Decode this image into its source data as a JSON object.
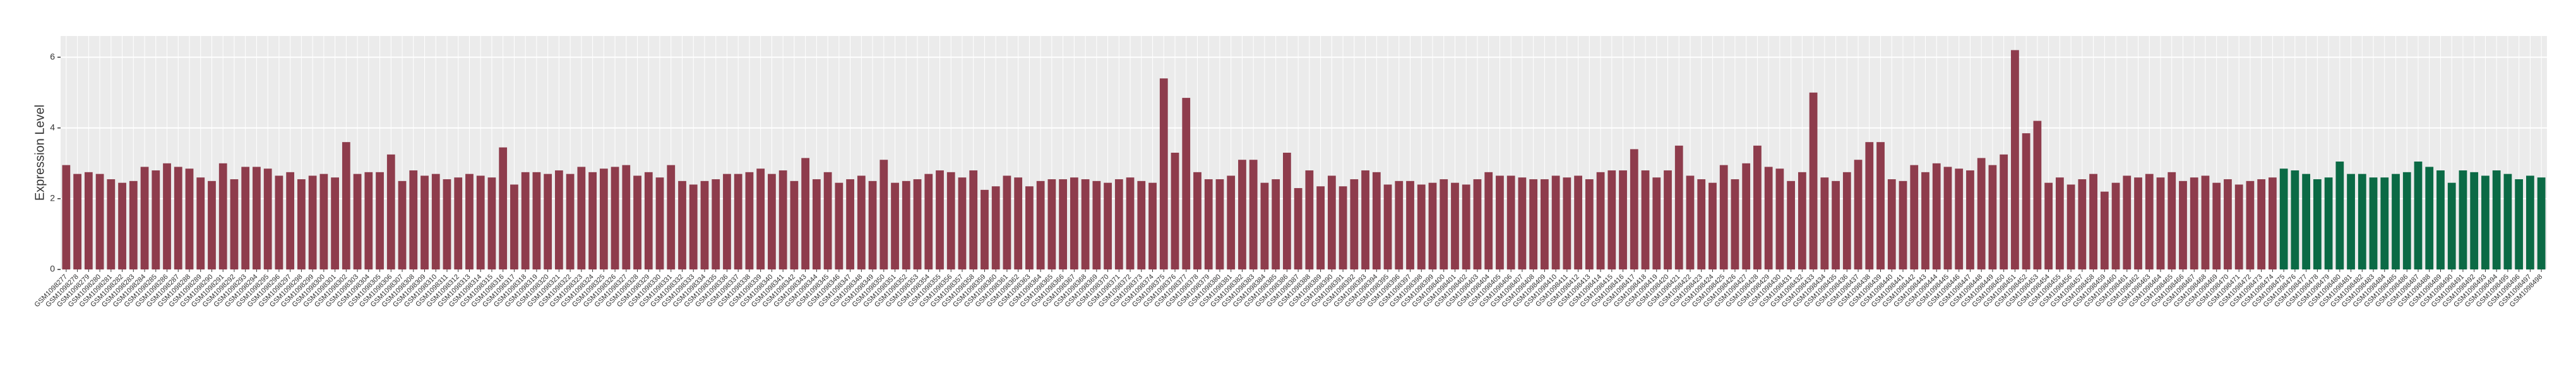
{
  "chart_data": {
    "type": "bar",
    "y_label": "Expression Level",
    "categories": [
      "GSM1098277",
      "GSM1098278",
      "GSM1098279",
      "GSM1098280",
      "GSM1098281",
      "GSM1098282",
      "GSM1098283",
      "GSM1098284",
      "GSM1098285",
      "GSM1098286",
      "GSM1098287",
      "GSM1098288",
      "GSM1098289",
      "GSM1098290",
      "GSM1098291",
      "GSM1098292",
      "GSM1098293",
      "GSM1098294",
      "GSM1098295",
      "GSM1098296",
      "GSM1098297",
      "GSM1098298",
      "GSM1098299",
      "GSM1098300",
      "GSM1098301",
      "GSM1098302",
      "GSM1098303",
      "GSM1098304",
      "GSM1098305",
      "GSM1098306",
      "GSM1098307",
      "GSM1098308",
      "GSM1098309",
      "GSM1098310",
      "GSM1098311",
      "GSM1098312",
      "GSM1098313",
      "GSM1098314",
      "GSM1098315",
      "GSM1098316",
      "GSM1098317",
      "GSM1098318",
      "GSM1098319",
      "GSM1098320",
      "GSM1098321",
      "GSM1098322",
      "GSM1098323",
      "GSM1098324",
      "GSM1098325",
      "GSM1098326",
      "GSM1098327",
      "GSM1098328",
      "GSM1098329",
      "GSM1098330",
      "GSM1098331",
      "GSM1098332",
      "GSM1098333",
      "GSM1098334",
      "GSM1098335",
      "GSM1098336",
      "GSM1098337",
      "GSM1098338",
      "GSM1098339",
      "GSM1098340",
      "GSM1098341",
      "GSM1098342",
      "GSM1098343",
      "GSM1098344",
      "GSM1098345",
      "GSM1098346",
      "GSM1098347",
      "GSM1098348",
      "GSM1098349",
      "GSM1098350",
      "GSM1098351",
      "GSM1098352",
      "GSM1098353",
      "GSM1098354",
      "GSM1098355",
      "GSM1098356",
      "GSM1098357",
      "GSM1098358",
      "GSM1098359",
      "GSM1098360",
      "GSM1098361",
      "GSM1098362",
      "GSM1098363",
      "GSM1098364",
      "GSM1098365",
      "GSM1098366",
      "GSM1098367",
      "GSM1098368",
      "GSM1098369",
      "GSM1098370",
      "GSM1098371",
      "GSM1098372",
      "GSM1098373",
      "GSM1098374",
      "GSM1098375",
      "GSM1098376",
      "GSM1098377",
      "GSM1098378",
      "GSM1098379",
      "GSM1098380",
      "GSM1098381",
      "GSM1098382",
      "GSM1098383",
      "GSM1098384",
      "GSM1098385",
      "GSM1098386",
      "GSM1098387",
      "GSM1098388",
      "GSM1098389",
      "GSM1098390",
      "GSM1098391",
      "GSM1098392",
      "GSM1098393",
      "GSM1098394",
      "GSM1098395",
      "GSM1098396",
      "GSM1098397",
      "GSM1098398",
      "GSM1098399",
      "GSM1098400",
      "GSM1098401",
      "GSM1098402",
      "GSM1098403",
      "GSM1098404",
      "GSM1098405",
      "GSM1098406",
      "GSM1098407",
      "GSM1098408",
      "GSM1098409",
      "GSM1098410",
      "GSM1098411",
      "GSM1098412",
      "GSM1098413",
      "GSM1098414",
      "GSM1098415",
      "GSM1098416",
      "GSM1098417",
      "GSM1098418",
      "GSM1098419",
      "GSM1098420",
      "GSM1098421",
      "GSM1098422",
      "GSM1098423",
      "GSM1098424",
      "GSM1098425",
      "GSM1098426",
      "GSM1098427",
      "GSM1098428",
      "GSM1098429",
      "GSM1098430",
      "GSM1098431",
      "GSM1098432",
      "GSM1098433",
      "GSM1098434",
      "GSM1098435",
      "GSM1098436",
      "GSM1098437",
      "GSM1098438",
      "GSM1098439",
      "GSM1098440",
      "GSM1098441",
      "GSM1098442",
      "GSM1098443",
      "GSM1098444",
      "GSM1098445",
      "GSM1098446",
      "GSM1098447",
      "GSM1098448",
      "GSM1098449",
      "GSM1098450",
      "GSM1098451",
      "GSM1098452",
      "GSM1098453",
      "GSM1098454",
      "GSM1098455",
      "GSM1098456",
      "GSM1098457",
      "GSM1098458",
      "GSM1098459",
      "GSM1098460",
      "GSM1098461",
      "GSM1098462",
      "GSM1098463",
      "GSM1098464",
      "GSM1098465",
      "GSM1098466",
      "GSM1098467",
      "GSM1098468",
      "GSM1098469",
      "GSM1098470",
      "GSM1098471",
      "GSM1098472",
      "GSM1098473",
      "GSM1098474",
      "GSM1098475",
      "GSM1098476",
      "GSM1098477",
      "GSM1098478",
      "GSM1098479",
      "GSM1098480",
      "GSM1098481",
      "GSM1098482",
      "GSM1098483",
      "GSM1098484",
      "GSM1098485",
      "GSM1098486",
      "GSM1098487",
      "GSM1098488",
      "GSM1098489",
      "GSM1098490",
      "GSM1098491",
      "GSM1098492",
      "GSM1098493",
      "GSM1098494",
      "GSM1098495",
      "GSM1098496",
      "GSM1098497",
      "GSM1098498"
    ],
    "series": [
      {
        "color": "#8e3c4c",
        "values": [
          2.95,
          2.7,
          2.75,
          2.7,
          2.55,
          2.45,
          2.5,
          2.9,
          2.8,
          3.0,
          2.9,
          2.85,
          2.6,
          2.5,
          3.0,
          2.55,
          2.9,
          2.9,
          2.85,
          2.65,
          2.75,
          2.55,
          2.65,
          2.7,
          2.6,
          3.6,
          2.7,
          2.75,
          2.75,
          3.25,
          2.5,
          2.8,
          2.65,
          2.7,
          2.55,
          2.6,
          2.7,
          2.65,
          2.6,
          3.45,
          2.4,
          2.75,
          2.75,
          2.7,
          2.8,
          2.7,
          2.9,
          2.75,
          2.85,
          2.9,
          2.95,
          2.65,
          2.75,
          2.6,
          2.95,
          2.5,
          2.4,
          2.5,
          2.55,
          2.7,
          2.7,
          2.75,
          2.85,
          2.7,
          2.8,
          2.5,
          3.15,
          2.55,
          2.75,
          2.45,
          2.55,
          2.65,
          2.5,
          3.1,
          2.45,
          2.5,
          2.55,
          2.7,
          2.8,
          2.75,
          2.6,
          2.8,
          2.25,
          2.35,
          2.65,
          2.6,
          2.35,
          2.5,
          2.55,
          2.55,
          2.6,
          2.55,
          2.5,
          2.45,
          2.55,
          2.6,
          2.5,
          2.45,
          5.4,
          3.3,
          4.85,
          2.75,
          2.55,
          2.55,
          2.65,
          3.1,
          3.1,
          2.45,
          2.55,
          3.3,
          2.3,
          2.8,
          2.35,
          2.65,
          2.35,
          2.55,
          2.8,
          2.75,
          2.4,
          2.5,
          2.5,
          2.4,
          2.45,
          2.55,
          2.45,
          2.4,
          2.55,
          2.75,
          2.65,
          2.65,
          2.6,
          2.55,
          2.55,
          2.65,
          2.6,
          2.65,
          2.55,
          2.75,
          2.8,
          2.8,
          3.4,
          2.8,
          2.6,
          2.8,
          3.5,
          2.65,
          2.55,
          2.45,
          2.95,
          2.55,
          3.0,
          3.5,
          2.9,
          2.85,
          2.5,
          2.75,
          5.0,
          2.6,
          2.5,
          2.75,
          3.1,
          3.6,
          3.6,
          2.55,
          2.5,
          2.95,
          2.75,
          3.0,
          2.9,
          2.85,
          2.8,
          3.15,
          2.95,
          3.25,
          6.2,
          3.85,
          4.2,
          2.45,
          2.6,
          2.4,
          2.55,
          2.7,
          2.2,
          2.45,
          2.65,
          2.6,
          2.7,
          2.6,
          2.75,
          2.5,
          2.6,
          2.65,
          2.45,
          2.55,
          2.4,
          2.5,
          2.55,
          2.6,
          null,
          null,
          null,
          null,
          null,
          null,
          null,
          null,
          null,
          null,
          null,
          null,
          null,
          null,
          null,
          null,
          null,
          null,
          null,
          null,
          null,
          null,
          null,
          null
        ]
      },
      {
        "color": "#0b6a45",
        "values": [
          null,
          null,
          null,
          null,
          null,
          null,
          null,
          null,
          null,
          null,
          null,
          null,
          null,
          null,
          null,
          null,
          null,
          null,
          null,
          null,
          null,
          null,
          null,
          null,
          null,
          null,
          null,
          null,
          null,
          null,
          null,
          null,
          null,
          null,
          null,
          null,
          null,
          null,
          null,
          null,
          null,
          null,
          null,
          null,
          null,
          null,
          null,
          null,
          null,
          null,
          null,
          null,
          null,
          null,
          null,
          null,
          null,
          null,
          null,
          null,
          null,
          null,
          null,
          null,
          null,
          null,
          null,
          null,
          null,
          null,
          null,
          null,
          null,
          null,
          null,
          null,
          null,
          null,
          null,
          null,
          null,
          null,
          null,
          null,
          null,
          null,
          null,
          null,
          null,
          null,
          null,
          null,
          null,
          null,
          null,
          null,
          null,
          null,
          null,
          null,
          null,
          null,
          null,
          null,
          null,
          null,
          null,
          null,
          null,
          null,
          null,
          null,
          null,
          null,
          null,
          null,
          null,
          null,
          null,
          null,
          null,
          null,
          null,
          null,
          null,
          null,
          null,
          null,
          null,
          null,
          null,
          null,
          null,
          null,
          null,
          null,
          null,
          null,
          null,
          null,
          null,
          null,
          null,
          null,
          null,
          null,
          null,
          null,
          null,
          null,
          null,
          null,
          null,
          null,
          null,
          null,
          null,
          null,
          null,
          null,
          null,
          null,
          null,
          null,
          null,
          null,
          null,
          null,
          null,
          null,
          null,
          null,
          null,
          null,
          null,
          null,
          null,
          null,
          null,
          null,
          null,
          null,
          null,
          null,
          null,
          null,
          null,
          null,
          null,
          null,
          null,
          null,
          null,
          null,
          null,
          null,
          null,
          null,
          2.85,
          2.8,
          2.7,
          2.55,
          2.6,
          3.05,
          2.7,
          2.7,
          2.6,
          2.6,
          2.7,
          2.75,
          3.05,
          2.9,
          2.8,
          2.45,
          2.8,
          2.75,
          2.65,
          2.8,
          2.7,
          2.55,
          2.65,
          2.6
        ]
      }
    ],
    "ylim": [
      0,
      6.6
    ],
    "yticks": [
      0,
      2,
      4,
      6
    ],
    "grid": true
  }
}
